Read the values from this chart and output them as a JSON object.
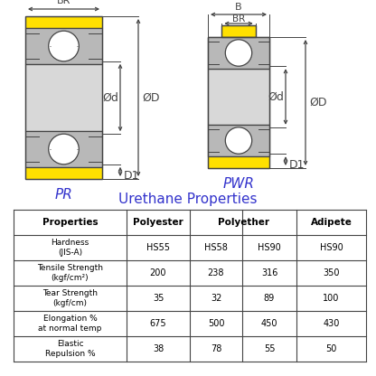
{
  "title": "Urethane Properties",
  "title_color": "#3333cc",
  "bg_color": "#ffffff",
  "table_rows": [
    [
      "Properties",
      "Polyester",
      "Polyether",
      "",
      "Adipete"
    ],
    [
      "Hardness\n(JIS-A)",
      "HS55",
      "HS58",
      "HS90",
      "HS90"
    ],
    [
      "Tensile Strength\n(kgf/cm²)",
      "200",
      "238",
      "316",
      "350"
    ],
    [
      "Tear Strength\n(kgf/cm)",
      "35",
      "32",
      "89",
      "100"
    ],
    [
      "Elongation %\nat normal temp",
      "675",
      "500",
      "450",
      "430"
    ],
    [
      "Elastic\nRepulsion %",
      "38",
      "78",
      "55",
      "50"
    ]
  ],
  "label_PR": "PR",
  "label_PWR": "PWR",
  "label_color": "#3333cc",
  "yellow_color": "#FFE000",
  "gray_color": "#B8B8B8",
  "light_gray": "#D8D8D8",
  "line_color": "#444444",
  "dim_color": "#444444"
}
